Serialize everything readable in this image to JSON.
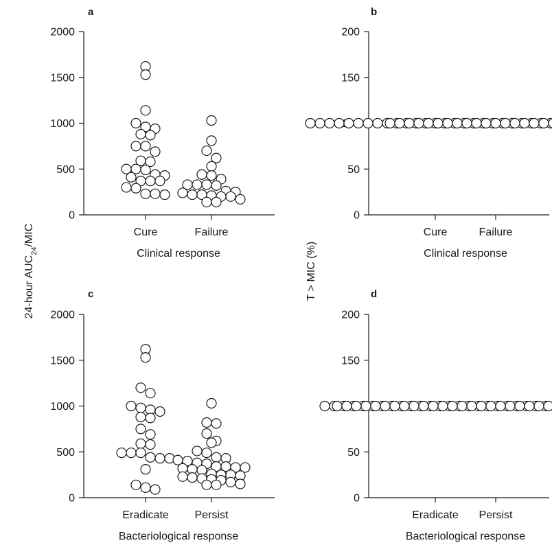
{
  "figure": {
    "left_ylabel_main": "24-hour AUC",
    "left_ylabel_sub": "24",
    "left_ylabel_tail": "/MIC",
    "right_ylabel": "T > MIC (%)"
  },
  "chart_data": [
    {
      "type": "scatter",
      "panel": "a",
      "xlabel": "Clinical response",
      "ylabel": "24-hour AUC24/MIC",
      "categories": [
        "Cure",
        "Failure"
      ],
      "ylim": [
        0,
        2000
      ],
      "yticks": [
        0,
        500,
        1000,
        1500,
        2000
      ],
      "series": [
        {
          "category": "Cure",
          "values": [
            1620,
            1530,
            1140,
            1000,
            960,
            940,
            880,
            870,
            750,
            750,
            690,
            590,
            580,
            500,
            500,
            490,
            440,
            430,
            410,
            370,
            370,
            370,
            300,
            290,
            230,
            230,
            220
          ]
        },
        {
          "category": "Failure",
          "values": [
            1030,
            810,
            700,
            620,
            530,
            440,
            430,
            390,
            330,
            330,
            330,
            320,
            260,
            250,
            240,
            220,
            220,
            210,
            200,
            200,
            170,
            140,
            140
          ]
        }
      ]
    },
    {
      "type": "scatter",
      "panel": "b",
      "xlabel": "Clinical response",
      "ylabel": "T > MIC (%)",
      "categories": [
        "Cure",
        "Failure"
      ],
      "ylim": [
        0,
        200
      ],
      "yticks": [
        0,
        50,
        100,
        150,
        200
      ],
      "series": [
        {
          "category": "Cure",
          "values": [
            100,
            100,
            100,
            100,
            100,
            100,
            100,
            100,
            100,
            100,
            100,
            100,
            100,
            100,
            100,
            100,
            100,
            100,
            100,
            100,
            100,
            100,
            100,
            100,
            100,
            100,
            100
          ]
        },
        {
          "category": "Failure",
          "values": [
            100,
            100,
            100,
            100,
            100,
            100,
            100,
            100,
            100,
            100,
            100,
            100,
            100,
            100,
            100,
            100,
            100,
            100,
            100,
            100,
            100,
            100,
            100
          ]
        }
      ]
    },
    {
      "type": "scatter",
      "panel": "c",
      "xlabel": "Bacteriological response",
      "ylabel": "24-hour AUC24/MIC",
      "categories": [
        "Eradicate",
        "Persist"
      ],
      "ylim": [
        0,
        2000
      ],
      "yticks": [
        0,
        500,
        1000,
        1500,
        2000
      ],
      "series": [
        {
          "category": "Eradicate",
          "values": [
            1620,
            1530,
            1200,
            1140,
            1000,
            980,
            960,
            940,
            880,
            870,
            750,
            690,
            590,
            580,
            490,
            490,
            490,
            440,
            430,
            430,
            310,
            140,
            110,
            90
          ]
        },
        {
          "category": "Persist",
          "values": [
            1030,
            820,
            810,
            700,
            620,
            600,
            510,
            490,
            440,
            430,
            410,
            400,
            380,
            370,
            340,
            340,
            330,
            330,
            320,
            310,
            300,
            260,
            250,
            250,
            240,
            230,
            220,
            210,
            200,
            190,
            170,
            150,
            140,
            140
          ]
        }
      ]
    },
    {
      "type": "scatter",
      "panel": "d",
      "xlabel": "Bacteriological response",
      "ylabel": "T > MIC (%)",
      "categories": [
        "Eradicate",
        "Persist"
      ],
      "ylim": [
        0,
        200
      ],
      "yticks": [
        0,
        50,
        100,
        150,
        200
      ],
      "series": [
        {
          "category": "Eradicate",
          "values": [
            100,
            100,
            100,
            100,
            100,
            100,
            100,
            100,
            100,
            100,
            100,
            100,
            100,
            100,
            100,
            100,
            100,
            100,
            100,
            100,
            100,
            100,
            100,
            100
          ]
        },
        {
          "category": "Persist",
          "values": [
            100,
            100,
            100,
            100,
            100,
            100,
            100,
            100,
            100,
            100,
            100,
            100,
            100,
            100,
            100,
            100,
            100,
            100,
            100,
            100,
            100,
            100,
            100,
            100,
            100,
            100,
            100,
            100,
            100,
            100,
            100,
            100,
            100,
            100
          ]
        }
      ]
    }
  ]
}
